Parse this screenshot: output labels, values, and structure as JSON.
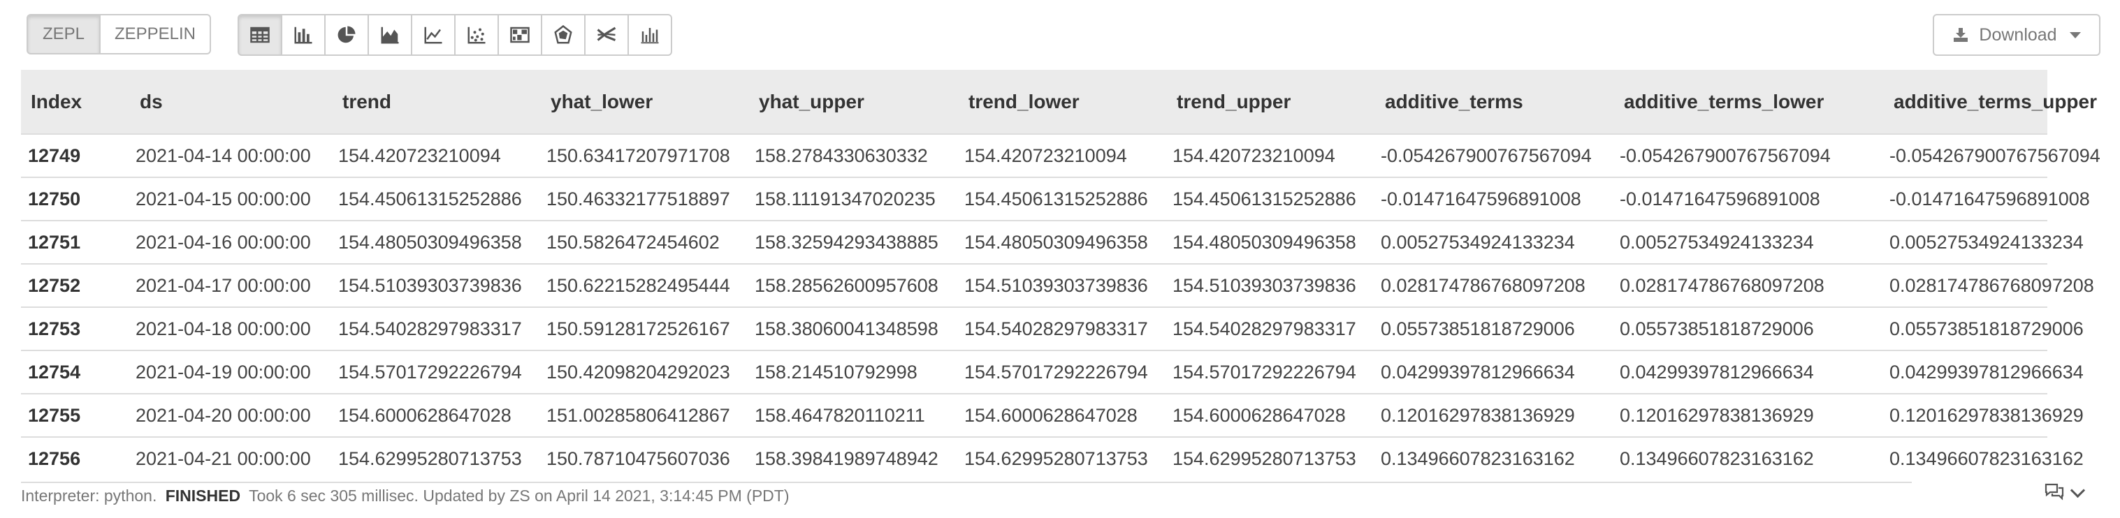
{
  "toolbar": {
    "mode_buttons": [
      "ZEPL",
      "ZEPPELIN"
    ],
    "viz_buttons": [
      "table-icon",
      "bar-chart-icon",
      "pie-chart-icon",
      "area-chart-icon",
      "line-chart-icon",
      "scatter-chart-icon",
      "heatmap-icon",
      "radar-chart-icon",
      "parallel-lines-icon",
      "bar-sparkline-icon"
    ],
    "download_label": "Download"
  },
  "table": {
    "columns": [
      "Index",
      "ds",
      "trend",
      "yhat_lower",
      "yhat_upper",
      "trend_lower",
      "trend_upper",
      "additive_terms",
      "additive_terms_lower",
      "additive_terms_upper"
    ],
    "rows": [
      [
        "12749",
        "2021-04-14 00:00:00",
        "154.420723210094",
        "150.63417207971708",
        "158.2784330630332",
        "154.420723210094",
        "154.420723210094",
        "-0.054267900767567094",
        "-0.054267900767567094",
        "-0.054267900767567094"
      ],
      [
        "12750",
        "2021-04-15 00:00:00",
        "154.45061315252886",
        "150.46332177518897",
        "158.11191347020235",
        "154.45061315252886",
        "154.45061315252886",
        "-0.01471647596891008",
        "-0.01471647596891008",
        "-0.01471647596891008"
      ],
      [
        "12751",
        "2021-04-16 00:00:00",
        "154.48050309496358",
        "150.5826472454602",
        "158.32594293438885",
        "154.48050309496358",
        "154.48050309496358",
        "0.00527534924133234",
        "0.00527534924133234",
        "0.00527534924133234"
      ],
      [
        "12752",
        "2021-04-17 00:00:00",
        "154.51039303739836",
        "150.62215282495444",
        "158.28562600957608",
        "154.51039303739836",
        "154.51039303739836",
        "0.028174786768097208",
        "0.028174786768097208",
        "0.028174786768097208"
      ],
      [
        "12753",
        "2021-04-18 00:00:00",
        "154.54028297983317",
        "150.59128172526167",
        "158.38060041348598",
        "154.54028297983317",
        "154.54028297983317",
        "0.05573851818729006",
        "0.05573851818729006",
        "0.05573851818729006"
      ],
      [
        "12754",
        "2021-04-19 00:00:00",
        "154.57017292226794",
        "150.42098204292023",
        "158.214510792998",
        "154.57017292226794",
        "154.57017292226794",
        "0.04299397812966634",
        "0.04299397812966634",
        "0.04299397812966634"
      ],
      [
        "12755",
        "2021-04-20 00:00:00",
        "154.6000628647028",
        "151.00285806412867",
        "158.4647820110211",
        "154.6000628647028",
        "154.6000628647028",
        "0.12016297838136929",
        "0.12016297838136929",
        "0.12016297838136929"
      ],
      [
        "12756",
        "2021-04-21 00:00:00",
        "154.62995280713753",
        "150.78710475607036",
        "158.39841989748942",
        "154.62995280713753",
        "154.62995280713753",
        "0.13496607823163162",
        "0.13496607823163162",
        "0.13496607823163162"
      ]
    ]
  },
  "status": {
    "interpreter": "Interpreter: python.",
    "state": "FINISHED",
    "detail": "Took 6 sec 305 millisec. Updated by ZS on April 14 2021, 3:14:45 PM (PDT)"
  },
  "comment_icon": "comments-icon"
}
